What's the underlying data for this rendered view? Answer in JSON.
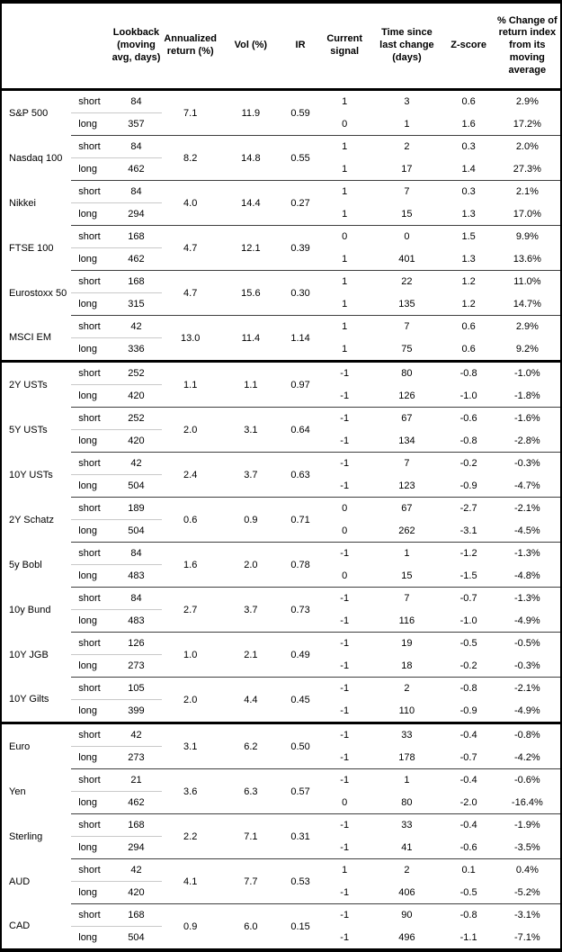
{
  "page": {
    "background": "#ffffff",
    "text_color": "#000000",
    "border_color": "#000000",
    "section_rule_color": "#000000",
    "group_rule_color": "#3f3f3f",
    "light_rule_color": "#c9c9c9"
  },
  "table": {
    "header": {
      "asset": "",
      "leg": "",
      "lookback": "Lookback (moving avg, days)",
      "annualized_return": "Annualized return (%)",
      "vol": "Vol (%)",
      "ir": "IR",
      "signal": "Current signal",
      "time_since": "Time since last change (days)",
      "z_score": "Z-score",
      "pct_change": "% Change of return index from its moving average"
    },
    "sections": [
      {
        "id": "equities",
        "groups": [
          {
            "asset": "S&P 500",
            "annualized_return": "7.1",
            "vol": "11.9",
            "ir": "0.59",
            "rows": [
              {
                "leg": "short",
                "lookback": "84",
                "signal": "1",
                "time_since": "3",
                "z_score": "0.6",
                "pct_change": "2.9%"
              },
              {
                "leg": "long",
                "lookback": "357",
                "signal": "0",
                "time_since": "1",
                "z_score": "1.6",
                "pct_change": "17.2%"
              }
            ]
          },
          {
            "asset": "Nasdaq 100",
            "annualized_return": "8.2",
            "vol": "14.8",
            "ir": "0.55",
            "rows": [
              {
                "leg": "short",
                "lookback": "84",
                "signal": "1",
                "time_since": "2",
                "z_score": "0.3",
                "pct_change": "2.0%"
              },
              {
                "leg": "long",
                "lookback": "462",
                "signal": "1",
                "time_since": "17",
                "z_score": "1.4",
                "pct_change": "27.3%"
              }
            ]
          },
          {
            "asset": "Nikkei",
            "annualized_return": "4.0",
            "vol": "14.4",
            "ir": "0.27",
            "rows": [
              {
                "leg": "short",
                "lookback": "84",
                "signal": "1",
                "time_since": "7",
                "z_score": "0.3",
                "pct_change": "2.1%"
              },
              {
                "leg": "long",
                "lookback": "294",
                "signal": "1",
                "time_since": "15",
                "z_score": "1.3",
                "pct_change": "17.0%"
              }
            ]
          },
          {
            "asset": "FTSE 100",
            "annualized_return": "4.7",
            "vol": "12.1",
            "ir": "0.39",
            "rows": [
              {
                "leg": "short",
                "lookback": "168",
                "signal": "0",
                "time_since": "0",
                "z_score": "1.5",
                "pct_change": "9.9%"
              },
              {
                "leg": "long",
                "lookback": "462",
                "signal": "1",
                "time_since": "401",
                "z_score": "1.3",
                "pct_change": "13.6%"
              }
            ]
          },
          {
            "asset": "Eurostoxx 50",
            "annualized_return": "4.7",
            "vol": "15.6",
            "ir": "0.30",
            "rows": [
              {
                "leg": "short",
                "lookback": "168",
                "signal": "1",
                "time_since": "22",
                "z_score": "1.2",
                "pct_change": "11.0%"
              },
              {
                "leg": "long",
                "lookback": "315",
                "signal": "1",
                "time_since": "135",
                "z_score": "1.2",
                "pct_change": "14.7%"
              }
            ]
          },
          {
            "asset": "MSCI EM",
            "annualized_return": "13.0",
            "vol": "11.4",
            "ir": "1.14",
            "rows": [
              {
                "leg": "short",
                "lookback": "42",
                "signal": "1",
                "time_since": "7",
                "z_score": "0.6",
                "pct_change": "2.9%"
              },
              {
                "leg": "long",
                "lookback": "336",
                "signal": "1",
                "time_since": "75",
                "z_score": "0.6",
                "pct_change": "9.2%"
              }
            ]
          }
        ]
      },
      {
        "id": "bonds",
        "groups": [
          {
            "asset": "2Y USTs",
            "annualized_return": "1.1",
            "vol": "1.1",
            "ir": "0.97",
            "rows": [
              {
                "leg": "short",
                "lookback": "252",
                "signal": "-1",
                "time_since": "80",
                "z_score": "-0.8",
                "pct_change": "-1.0%"
              },
              {
                "leg": "long",
                "lookback": "420",
                "signal": "-1",
                "time_since": "126",
                "z_score": "-1.0",
                "pct_change": "-1.8%"
              }
            ]
          },
          {
            "asset": "5Y USTs",
            "annualized_return": "2.0",
            "vol": "3.1",
            "ir": "0.64",
            "rows": [
              {
                "leg": "short",
                "lookback": "252",
                "signal": "-1",
                "time_since": "67",
                "z_score": "-0.6",
                "pct_change": "-1.6%"
              },
              {
                "leg": "long",
                "lookback": "420",
                "signal": "-1",
                "time_since": "134",
                "z_score": "-0.8",
                "pct_change": "-2.8%"
              }
            ]
          },
          {
            "asset": "10Y USTs",
            "annualized_return": "2.4",
            "vol": "3.7",
            "ir": "0.63",
            "rows": [
              {
                "leg": "short",
                "lookback": "42",
                "signal": "-1",
                "time_since": "7",
                "z_score": "-0.2",
                "pct_change": "-0.3%"
              },
              {
                "leg": "long",
                "lookback": "504",
                "signal": "-1",
                "time_since": "123",
                "z_score": "-0.9",
                "pct_change": "-4.7%"
              }
            ]
          },
          {
            "asset": "2Y Schatz",
            "annualized_return": "0.6",
            "vol": "0.9",
            "ir": "0.71",
            "rows": [
              {
                "leg": "short",
                "lookback": "189",
                "signal": "0",
                "time_since": "67",
                "z_score": "-2.7",
                "pct_change": "-2.1%"
              },
              {
                "leg": "long",
                "lookback": "504",
                "signal": "0",
                "time_since": "262",
                "z_score": "-3.1",
                "pct_change": "-4.5%"
              }
            ]
          },
          {
            "asset": "5y Bobl",
            "annualized_return": "1.6",
            "vol": "2.0",
            "ir": "0.78",
            "rows": [
              {
                "leg": "short",
                "lookback": "84",
                "signal": "-1",
                "time_since": "1",
                "z_score": "-1.2",
                "pct_change": "-1.3%"
              },
              {
                "leg": "long",
                "lookback": "483",
                "signal": "0",
                "time_since": "15",
                "z_score": "-1.5",
                "pct_change": "-4.8%"
              }
            ]
          },
          {
            "asset": "10y Bund",
            "annualized_return": "2.7",
            "vol": "3.7",
            "ir": "0.73",
            "rows": [
              {
                "leg": "short",
                "lookback": "84",
                "signal": "-1",
                "time_since": "7",
                "z_score": "-0.7",
                "pct_change": "-1.3%"
              },
              {
                "leg": "long",
                "lookback": "483",
                "signal": "-1",
                "time_since": "116",
                "z_score": "-1.0",
                "pct_change": "-4.9%"
              }
            ]
          },
          {
            "asset": "10Y JGB",
            "annualized_return": "1.0",
            "vol": "2.1",
            "ir": "0.49",
            "rows": [
              {
                "leg": "short",
                "lookback": "126",
                "signal": "-1",
                "time_since": "19",
                "z_score": "-0.5",
                "pct_change": "-0.5%"
              },
              {
                "leg": "long",
                "lookback": "273",
                "signal": "-1",
                "time_since": "18",
                "z_score": "-0.2",
                "pct_change": "-0.3%"
              }
            ]
          },
          {
            "asset": "10Y Gilts",
            "annualized_return": "2.0",
            "vol": "4.4",
            "ir": "0.45",
            "rows": [
              {
                "leg": "short",
                "lookback": "105",
                "signal": "-1",
                "time_since": "2",
                "z_score": "-0.8",
                "pct_change": "-2.1%"
              },
              {
                "leg": "long",
                "lookback": "399",
                "signal": "-1",
                "time_since": "110",
                "z_score": "-0.9",
                "pct_change": "-4.9%"
              }
            ]
          }
        ]
      },
      {
        "id": "fx",
        "groups": [
          {
            "asset": "Euro",
            "annualized_return": "3.1",
            "vol": "6.2",
            "ir": "0.50",
            "rows": [
              {
                "leg": "short",
                "lookback": "42",
                "signal": "-1",
                "time_since": "33",
                "z_score": "-0.4",
                "pct_change": "-0.8%"
              },
              {
                "leg": "long",
                "lookback": "273",
                "signal": "-1",
                "time_since": "178",
                "z_score": "-0.7",
                "pct_change": "-4.2%"
              }
            ]
          },
          {
            "asset": "Yen",
            "annualized_return": "3.6",
            "vol": "6.3",
            "ir": "0.57",
            "rows": [
              {
                "leg": "short",
                "lookback": "21",
                "signal": "-1",
                "time_since": "1",
                "z_score": "-0.4",
                "pct_change": "-0.6%"
              },
              {
                "leg": "long",
                "lookback": "462",
                "signal": "0",
                "time_since": "80",
                "z_score": "-2.0",
                "pct_change": "-16.4%"
              }
            ]
          },
          {
            "asset": "Sterling",
            "annualized_return": "2.2",
            "vol": "7.1",
            "ir": "0.31",
            "rows": [
              {
                "leg": "short",
                "lookback": "168",
                "signal": "-1",
                "time_since": "33",
                "z_score": "-0.4",
                "pct_change": "-1.9%"
              },
              {
                "leg": "long",
                "lookback": "294",
                "signal": "-1",
                "time_since": "41",
                "z_score": "-0.6",
                "pct_change": "-3.5%"
              }
            ]
          },
          {
            "asset": "AUD",
            "annualized_return": "4.1",
            "vol": "7.7",
            "ir": "0.53",
            "rows": [
              {
                "leg": "short",
                "lookback": "42",
                "signal": "1",
                "time_since": "2",
                "z_score": "0.1",
                "pct_change": "0.4%"
              },
              {
                "leg": "long",
                "lookback": "420",
                "signal": "-1",
                "time_since": "406",
                "z_score": "-0.5",
                "pct_change": "-5.2%"
              }
            ]
          },
          {
            "asset": "CAD",
            "annualized_return": "0.9",
            "vol": "6.0",
            "ir": "0.15",
            "rows": [
              {
                "leg": "short",
                "lookback": "168",
                "signal": "-1",
                "time_since": "90",
                "z_score": "-0.8",
                "pct_change": "-3.1%"
              },
              {
                "leg": "long",
                "lookback": "504",
                "signal": "-1",
                "time_since": "496",
                "z_score": "-1.1",
                "pct_change": "-7.1%"
              }
            ]
          }
        ]
      }
    ]
  }
}
